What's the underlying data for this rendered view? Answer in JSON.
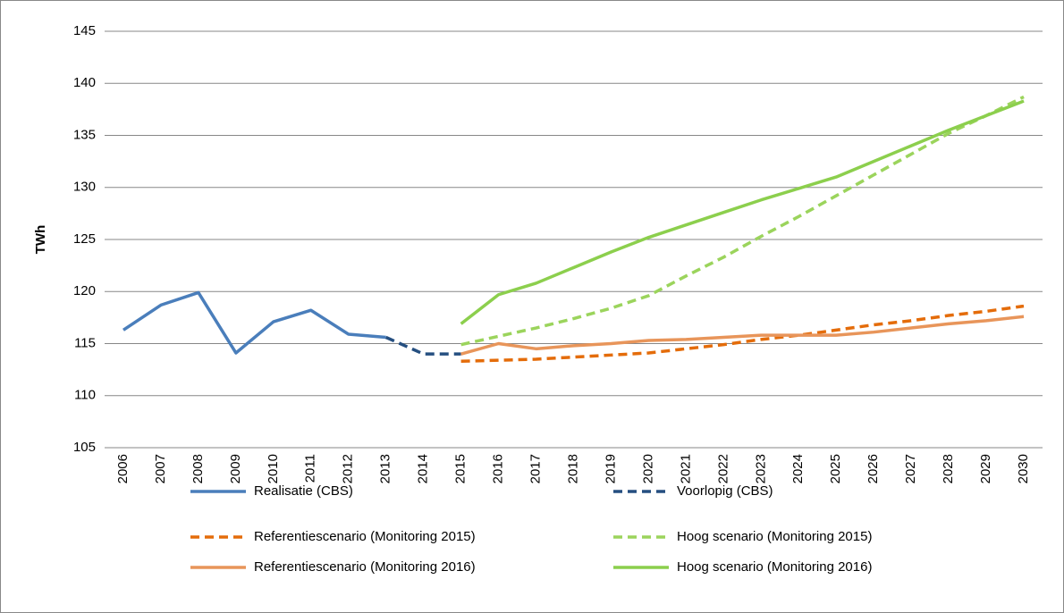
{
  "chart_data": {
    "type": "line",
    "y_label": "TWh",
    "categories": [
      "2006",
      "2007",
      "2008",
      "2009",
      "2010",
      "2011",
      "2012",
      "2013",
      "2014",
      "2015",
      "2016",
      "2017",
      "2018",
      "2019",
      "2020",
      "2021",
      "2022",
      "2023",
      "2024",
      "2025",
      "2026",
      "2027",
      "2028",
      "2029",
      "2030"
    ],
    "ylim": [
      105,
      145
    ],
    "yticks": [
      105,
      110,
      115,
      120,
      125,
      130,
      135,
      140,
      145
    ],
    "grid": true,
    "series": [
      {
        "name": "Realisatie (CBS)",
        "color": "#4a7ebb",
        "dashed": false,
        "values": [
          116.3,
          118.7,
          119.9,
          114.1,
          117.1,
          118.2,
          115.9,
          115.6,
          null,
          null,
          null,
          null,
          null,
          null,
          null,
          null,
          null,
          null,
          null,
          null,
          null,
          null,
          null,
          null,
          null
        ]
      },
      {
        "name": "Voorlopig (CBS)",
        "color": "#254f80",
        "dashed": true,
        "values": [
          null,
          null,
          null,
          null,
          null,
          null,
          null,
          115.6,
          114.0,
          114.0,
          null,
          null,
          null,
          null,
          null,
          null,
          null,
          null,
          null,
          null,
          null,
          null,
          null,
          null,
          null
        ]
      },
      {
        "name": "Referentiescenario (Monitoring 2015)",
        "color": "#e46c0a",
        "dashed": true,
        "values": [
          null,
          null,
          null,
          null,
          null,
          null,
          null,
          null,
          null,
          113.3,
          113.4,
          113.5,
          113.7,
          113.9,
          114.1,
          114.5,
          114.9,
          115.4,
          115.8,
          116.3,
          116.8,
          117.2,
          117.7,
          118.1,
          118.6
        ]
      },
      {
        "name": "Hoog scenario (Monitoring 2015)",
        "color": "#9bd45c",
        "dashed": true,
        "values": [
          null,
          null,
          null,
          null,
          null,
          null,
          null,
          null,
          null,
          114.9,
          115.7,
          116.5,
          117.4,
          118.4,
          119.6,
          121.5,
          123.3,
          125.3,
          127.2,
          129.2,
          131.2,
          133.2,
          135.2,
          136.9,
          138.7
        ]
      },
      {
        "name": "Referentiescenario (Monitoring 2016)",
        "color": "#e8955a",
        "dashed": false,
        "values": [
          null,
          null,
          null,
          null,
          null,
          null,
          null,
          null,
          null,
          114.0,
          115.0,
          114.5,
          114.8,
          115.0,
          115.3,
          115.4,
          115.6,
          115.8,
          115.8,
          115.8,
          116.1,
          116.5,
          116.9,
          117.2,
          117.6
        ]
      },
      {
        "name": "Hoog scenario (Monitoring 2016)",
        "color": "#8ccf4d",
        "dashed": false,
        "values": [
          null,
          null,
          null,
          null,
          null,
          null,
          null,
          null,
          null,
          116.9,
          119.7,
          120.8,
          122.3,
          123.8,
          125.2,
          126.4,
          127.6,
          128.8,
          129.9,
          131.0,
          132.5,
          134.0,
          135.5,
          136.9,
          138.3
        ]
      }
    ]
  }
}
